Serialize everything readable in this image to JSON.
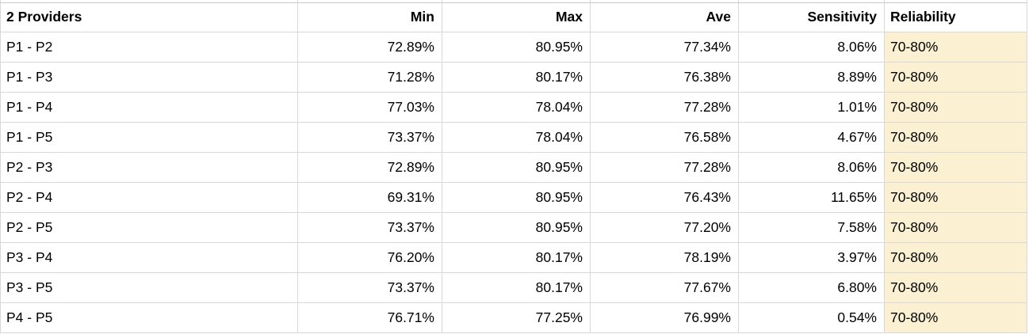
{
  "table": {
    "columns": [
      {
        "id": "providers",
        "label": "2 Providers"
      },
      {
        "id": "min",
        "label": "Min"
      },
      {
        "id": "max",
        "label": "Max"
      },
      {
        "id": "ave",
        "label": "Ave"
      },
      {
        "id": "sensitivity",
        "label": "Sensitivity"
      },
      {
        "id": "reliability",
        "label": "Reliability"
      }
    ],
    "rows": [
      [
        "P1 - P2",
        "72.89%",
        "80.95%",
        "77.34%",
        "8.06%",
        "70-80%"
      ],
      [
        "P1 - P3",
        "71.28%",
        "80.17%",
        "76.38%",
        "8.89%",
        "70-80%"
      ],
      [
        "P1 - P4",
        "77.03%",
        "78.04%",
        "77.28%",
        "1.01%",
        "70-80%"
      ],
      [
        "P1 - P5",
        "73.37%",
        "78.04%",
        "76.58%",
        "4.67%",
        "70-80%"
      ],
      [
        "P2 - P3",
        "72.89%",
        "80.95%",
        "77.28%",
        "8.06%",
        "70-80%"
      ],
      [
        "P2 - P4",
        "69.31%",
        "80.95%",
        "76.43%",
        "11.65%",
        "70-80%"
      ],
      [
        "P2 - P5",
        "73.37%",
        "80.95%",
        "77.20%",
        "7.58%",
        "70-80%"
      ],
      [
        "P3 - P4",
        "76.20%",
        "80.17%",
        "78.19%",
        "3.97%",
        "70-80%"
      ],
      [
        "P3 - P5",
        "73.37%",
        "80.17%",
        "77.67%",
        "6.80%",
        "70-80%"
      ],
      [
        "P4 - P5",
        "76.71%",
        "77.25%",
        "76.99%",
        "0.54%",
        "70-80%"
      ]
    ]
  },
  "colors": {
    "background": "#FFFFFF",
    "gridline": "#D8D8D8",
    "top_hairline": "#C8C8C8",
    "text": "#000000",
    "reliability_fill": "#FBF0D2"
  }
}
